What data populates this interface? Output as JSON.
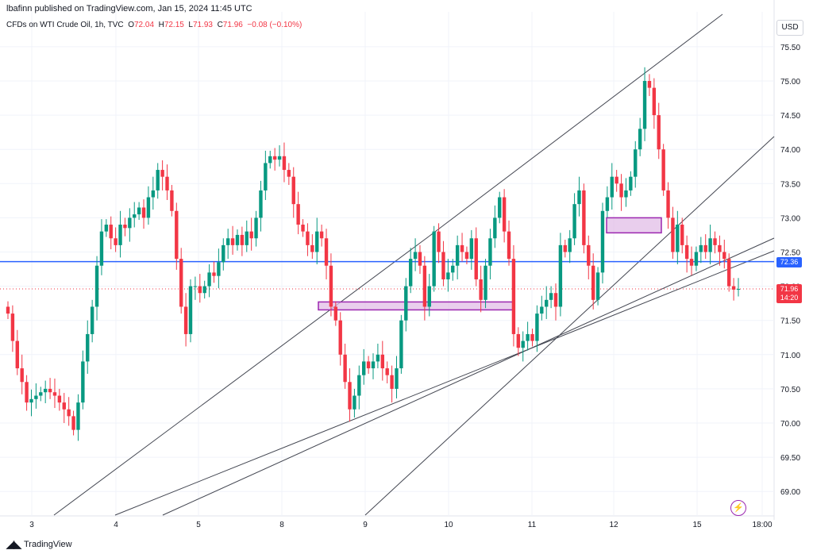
{
  "header": {
    "publisher": "lbafinn published on TradingView.com, Jan 15, 2024 11:45 UTC",
    "symbol": "CFDs on WTI Crude Oil, 1h, TVC",
    "open_label": "O",
    "open": "72.04",
    "high_label": "H",
    "high": "72.15",
    "low_label": "L",
    "low": "71.93",
    "close_label": "C",
    "close": "71.96",
    "change": "−0.08 (−0.10%)"
  },
  "currency_button": "USD",
  "footer": {
    "brand": "TradingView",
    "logo_icon": "tradingview-logo-icon"
  },
  "colors": {
    "up": "#089981",
    "down": "#f23645",
    "hline": "#2962ff",
    "zone_fill": "#e1bee7",
    "zone_border": "#9c27b0",
    "trendline": "#434651",
    "grid": "#f0f3fa"
  },
  "chart_data": {
    "type": "candlestick",
    "symbol": "CFDs on WTI Crude Oil",
    "timeframe": "1h",
    "y_axis": {
      "ticks": [
        "75.50",
        "75.00",
        "74.50",
        "74.00",
        "73.50",
        "73.00",
        "72.50",
        "72.00",
        "71.50",
        "71.00",
        "70.50",
        "70.00",
        "69.50",
        "69.00"
      ],
      "range": [
        68.8,
        75.8
      ]
    },
    "x_axis": {
      "ticks": [
        "3",
        "4",
        "5",
        "8",
        "9",
        "10",
        "11",
        "12",
        "15",
        "18:00"
      ]
    },
    "horizontal_line": {
      "value": 72.36,
      "label": "72.36"
    },
    "last_price": {
      "value": 71.96,
      "label": "71.96",
      "countdown": "14:20"
    },
    "zones": [
      {
        "from_x": 0.0,
        "to_x": 0.0,
        "top": 71.77,
        "bottom": 71.69
      },
      {
        "top": 73.0,
        "bottom": 72.78
      }
    ],
    "closes": [
      71.6,
      71.2,
      70.8,
      70.6,
      70.3,
      70.35,
      70.4,
      70.45,
      70.5,
      70.45,
      70.4,
      70.3,
      70.2,
      70.1,
      69.9,
      70.3,
      70.9,
      71.3,
      71.7,
      72.3,
      72.8,
      72.9,
      72.7,
      72.6,
      72.9,
      72.85,
      73.0,
      73.05,
      73.15,
      73.0,
      73.3,
      73.4,
      73.7,
      73.6,
      73.4,
      73.1,
      72.4,
      71.7,
      71.3,
      72.0,
      72.0,
      71.9,
      72.0,
      72.2,
      72.15,
      72.35,
      72.6,
      72.7,
      72.6,
      72.75,
      72.6,
      72.8,
      72.7,
      73.0,
      73.4,
      73.8,
      73.9,
      73.85,
      73.9,
      73.7,
      73.6,
      73.2,
      72.9,
      72.8,
      72.6,
      72.5,
      72.8,
      72.7,
      72.3,
      71.7,
      71.5,
      71.0,
      70.6,
      70.2,
      70.4,
      70.7,
      70.9,
      70.8,
      70.9,
      71.0,
      70.8,
      70.7,
      70.5,
      70.8,
      71.5,
      72.0,
      72.4,
      72.5,
      72.3,
      71.7,
      72.0,
      72.8,
      72.5,
      72.1,
      72.2,
      72.3,
      72.6,
      72.5,
      72.4,
      72.7,
      72.1,
      71.8,
      72.3,
      72.7,
      73.0,
      73.3,
      72.8,
      72.4,
      71.3,
      71.1,
      71.2,
      71.3,
      71.2,
      71.6,
      71.7,
      71.8,
      71.9,
      71.7,
      72.6,
      72.5,
      72.7,
      73.2,
      73.4,
      72.6,
      72.3,
      71.8,
      72.2,
      73.1,
      73.3,
      73.6,
      73.5,
      73.3,
      73.4,
      73.6,
      74.0,
      74.3,
      75.0,
      74.9,
      74.5,
      74.0,
      73.4,
      73.0,
      72.5,
      72.9,
      72.6,
      72.4,
      72.3,
      72.5,
      72.6,
      72.5,
      72.7,
      72.6,
      72.5,
      72.4,
      72.0,
      71.95,
      71.96
    ]
  }
}
